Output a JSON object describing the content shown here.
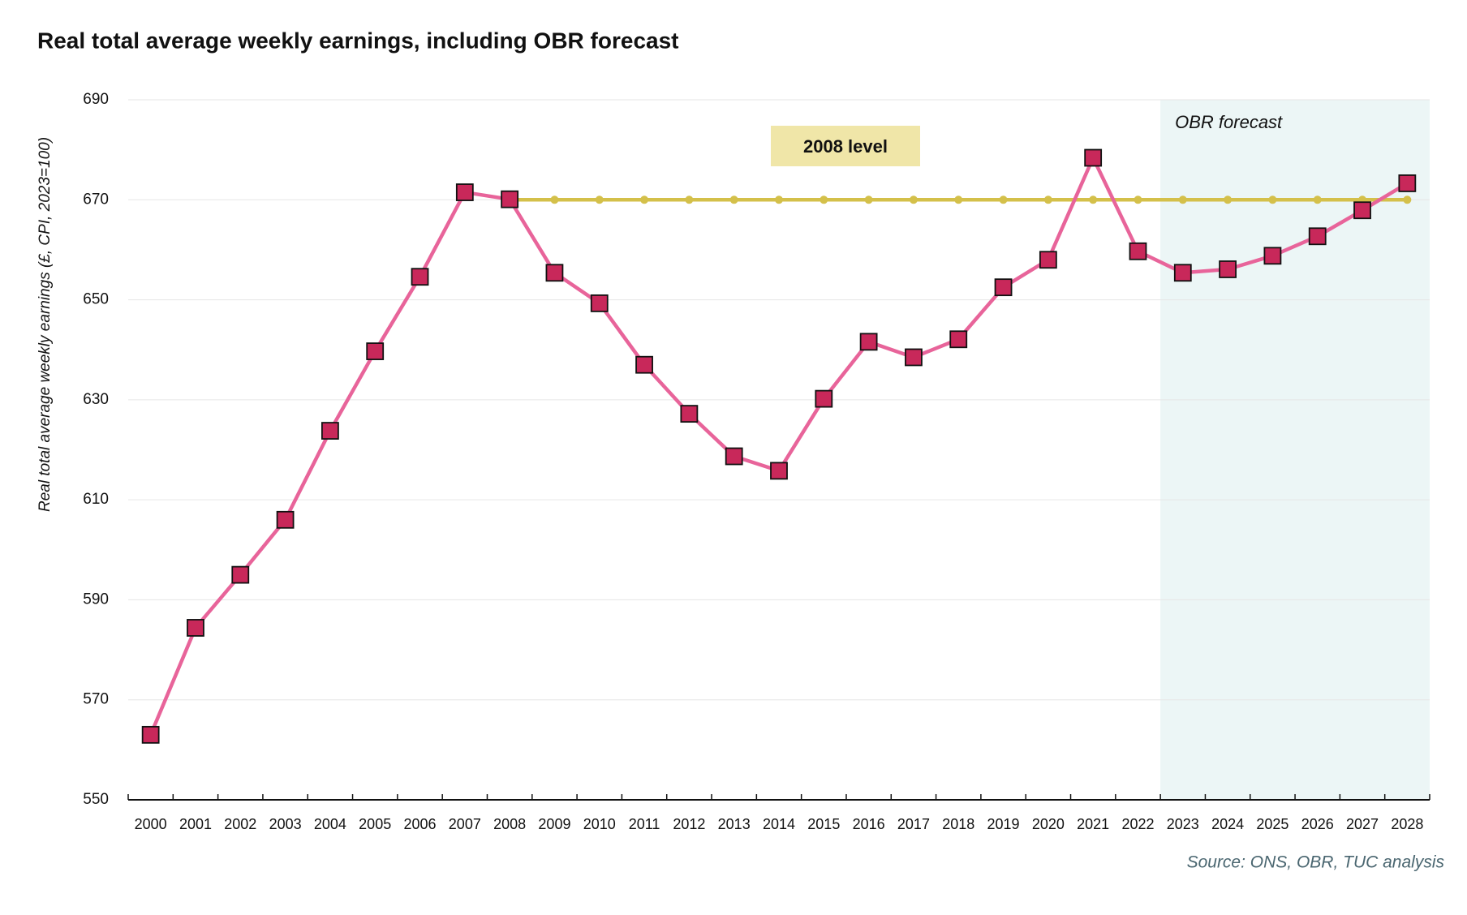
{
  "chart_data": {
    "type": "line",
    "title": "Real total average weekly earnings, including OBR forecast",
    "y_label": "Real total average weekly earnings (£, CPI, 2023=100)",
    "source": "Source: ONS, OBR, TUC analysis",
    "categories": [
      "2000",
      "2001",
      "2002",
      "2003",
      "2004",
      "2005",
      "2006",
      "2007",
      "2008",
      "2009",
      "2010",
      "2011",
      "2012",
      "2013",
      "2014",
      "2015",
      "2016",
      "2017",
      "2018",
      "2019",
      "2020",
      "2021",
      "2022",
      "2023",
      "2024",
      "2025",
      "2026",
      "2027",
      "2028"
    ],
    "series": [
      {
        "color": "#e8649a",
        "marker": "square",
        "marker_color": "#c8285a",
        "values": [
          563,
          584.4,
          595,
          606,
          623.8,
          639.7,
          654.6,
          671.5,
          670.1,
          655.4,
          649.3,
          637,
          627.2,
          618.7,
          615.8,
          630.2,
          641.6,
          638.5,
          642.1,
          652.5,
          658,
          678.4,
          659.7,
          655.4,
          656.1,
          658.8,
          662.7,
          667.9,
          673.3
        ]
      },
      {
        "color": "#d4c04a",
        "marker": "dot",
        "marker_color": "#d4c04a",
        "values": [
          null,
          null,
          null,
          null,
          null,
          null,
          null,
          null,
          670,
          670,
          670,
          670,
          670,
          670,
          670,
          670,
          670,
          670,
          670,
          670,
          670,
          670,
          670,
          670,
          670,
          670,
          670,
          670,
          670
        ]
      }
    ],
    "annotations": [
      {
        "text": "2008 level",
        "box_color": "#f0e6a8"
      },
      {
        "text": "OBR  forecast",
        "from": "2023",
        "to": "2028",
        "shade_color": "#ecf6f6"
      }
    ],
    "ylim": [
      550,
      690
    ],
    "yticks": [
      550,
      570,
      590,
      610,
      630,
      650,
      670,
      690
    ],
    "grid": true
  }
}
